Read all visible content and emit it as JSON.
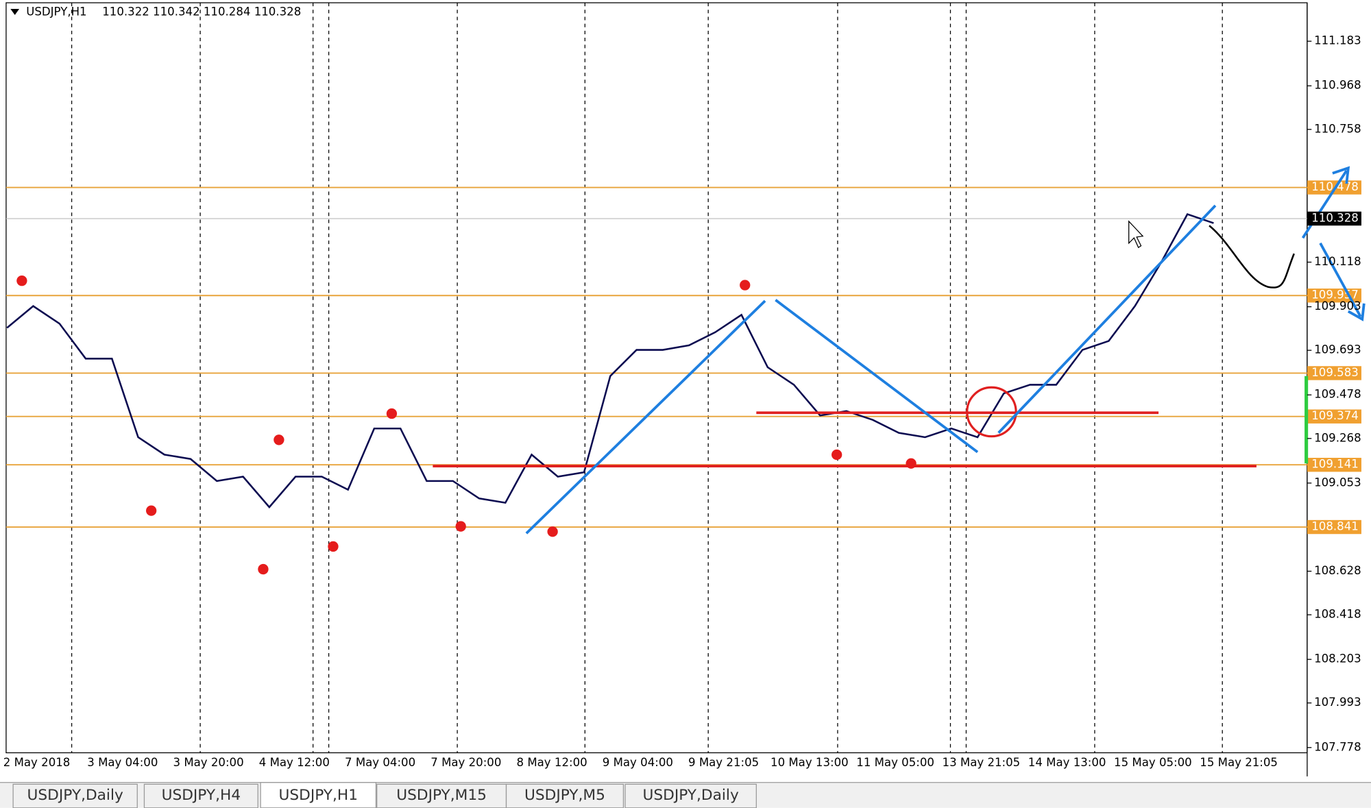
{
  "header": {
    "symbol": "USDJPY,H1",
    "ohlc": "110.322 110.342 110.284 110.328"
  },
  "price_axis": {
    "ylim": [
      107.778,
      111.183
    ],
    "ticks": [
      111.183,
      110.968,
      110.758,
      110.118,
      109.903,
      109.693,
      109.478,
      109.268,
      109.053,
      108.628,
      108.418,
      108.203,
      107.993,
      107.778
    ],
    "current_price": 110.328,
    "levels": [
      110.478,
      109.957,
      109.583,
      109.374,
      109.141,
      108.841
    ]
  },
  "time_axis": {
    "labels": [
      "2 May 2018",
      "3 May 04:00",
      "3 May 20:00",
      "4 May 12:00",
      "7 May 04:00",
      "7 May 20:00",
      "8 May 12:00",
      "9 May 04:00",
      "9 May 21:05",
      "10 May 13:00",
      "11 May 05:00",
      "13 May 21:05",
      "14 May 13:00",
      "15 May 05:00",
      "15 May 21:05"
    ]
  },
  "price_path": [
    109.801,
    109.906,
    109.822,
    109.653,
    109.653,
    109.274,
    109.19,
    109.169,
    109.063,
    109.084,
    108.937,
    109.084,
    109.084,
    109.021,
    109.316,
    109.316,
    109.063,
    109.063,
    108.979,
    108.958,
    109.19,
    109.084,
    109.105,
    109.569,
    109.695,
    109.695,
    109.717,
    109.78,
    109.864,
    109.611,
    109.527,
    109.379,
    109.4,
    109.358,
    109.295,
    109.274,
    109.316,
    109.274,
    109.485,
    109.527,
    109.527,
    109.695,
    109.738,
    109.906,
    110.117,
    110.349,
    110.306
  ],
  "tabs": [
    "USDJPY,Daily",
    "USDJPY,H4",
    "USDJPY,H1",
    "USDJPY,M15",
    "USDJPY,M5",
    "USDJPY,Daily"
  ]
}
